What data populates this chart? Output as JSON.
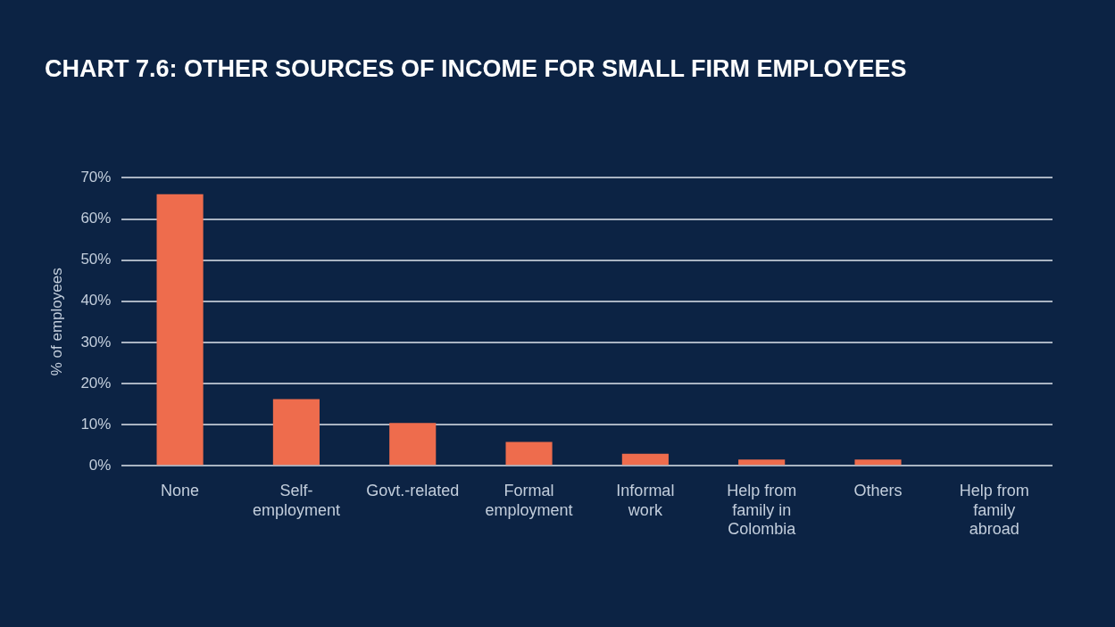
{
  "chart_data": {
    "type": "bar",
    "title": "CHART 7.6: OTHER SOURCES OF INCOME FOR SMALL FIRM EMPLOYEES",
    "ylabel": "% of employees",
    "categories": [
      "None",
      "Self-employment",
      "Govt.-related",
      "Formal employment",
      "Informal work",
      "Help from family in Colombia",
      "Others",
      "Help from family abroad"
    ],
    "values": [
      66,
      16.2,
      10.4,
      5.8,
      2.9,
      1.5,
      1.5,
      0
    ],
    "color": "#ee6c4d",
    "ylim": [
      0,
      70
    ],
    "yticks": [
      {
        "value": 0,
        "label": "0%"
      },
      {
        "value": 10,
        "label": "10%"
      },
      {
        "value": 20,
        "label": "20%"
      },
      {
        "value": 30,
        "label": "30%"
      },
      {
        "value": 40,
        "label": "40%"
      },
      {
        "value": 50,
        "label": "50%"
      },
      {
        "value": 60,
        "label": "60%"
      },
      {
        "value": 70,
        "label": "70%"
      }
    ],
    "grid": "y",
    "legend": false
  }
}
